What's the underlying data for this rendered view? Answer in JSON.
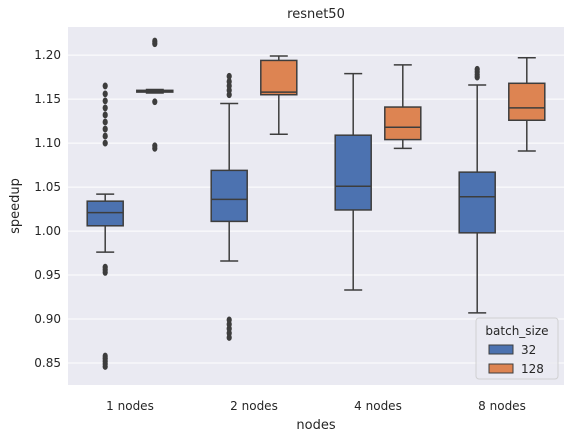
{
  "chart_data": {
    "type": "box",
    "title": "resnet50",
    "xlabel": "nodes",
    "ylabel": "speedup",
    "ylim": [
      0.825,
      1.232
    ],
    "yticks": [
      "0.85",
      "0.90",
      "0.95",
      "1.00",
      "1.05",
      "1.10",
      "1.15",
      "1.20"
    ],
    "grid": true,
    "categories": [
      "1 nodes",
      "2 nodes",
      "4 nodes",
      "8 nodes"
    ],
    "legend": {
      "title": "batch_size",
      "placement": "lower-right"
    },
    "series": [
      {
        "name": "32",
        "color": "#4c72b0",
        "boxes": [
          {
            "whislo": 0.976,
            "q1": 1.006,
            "med": 1.021,
            "q3": 1.034,
            "whishi": 1.042,
            "fliers": [
              0.846,
              0.849,
              0.852,
              0.855,
              0.858,
              0.953,
              0.956,
              0.959,
              1.1,
              1.108,
              1.116,
              1.124,
              1.132,
              1.14,
              1.148,
              1.156,
              1.165
            ]
          },
          {
            "whislo": 0.966,
            "q1": 1.011,
            "med": 1.036,
            "q3": 1.069,
            "whishi": 1.145,
            "fliers": [
              0.879,
              0.884,
              0.889,
              0.894,
              0.899,
              1.155,
              1.16,
              1.165,
              1.17,
              1.176
            ]
          },
          {
            "whislo": 0.933,
            "q1": 1.024,
            "med": 1.051,
            "q3": 1.109,
            "whishi": 1.179,
            "fliers": []
          },
          {
            "whislo": 0.907,
            "q1": 0.998,
            "med": 1.039,
            "q3": 1.067,
            "whishi": 1.166,
            "fliers": [
              1.175,
              1.178,
              1.181,
              1.184
            ]
          }
        ]
      },
      {
        "name": "128",
        "color": "#dd8452",
        "boxes": [
          {
            "whislo": 1.157,
            "q1": 1.158,
            "med": 1.159,
            "q3": 1.16,
            "whishi": 1.161,
            "fliers": [
              1.094,
              1.097,
              1.147,
              1.213,
              1.216
            ]
          },
          {
            "whislo": 1.11,
            "q1": 1.155,
            "med": 1.158,
            "q3": 1.194,
            "whishi": 1.199,
            "fliers": []
          },
          {
            "whislo": 1.094,
            "q1": 1.104,
            "med": 1.118,
            "q3": 1.141,
            "whishi": 1.189,
            "fliers": []
          },
          {
            "whislo": 1.091,
            "q1": 1.126,
            "med": 1.14,
            "q3": 1.168,
            "whishi": 1.197,
            "fliers": []
          }
        ]
      }
    ]
  }
}
